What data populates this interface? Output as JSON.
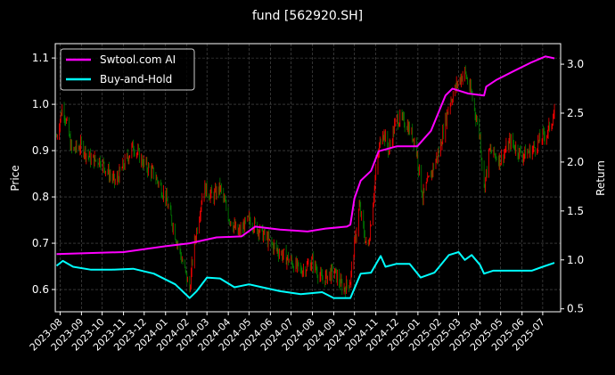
{
  "chart_data": {
    "type": "line",
    "title": "fund [562920.SH]",
    "ylabel_left": "Price",
    "ylabel_right": "Return",
    "xlim": [
      "2023-07-25",
      "2025-07-27"
    ],
    "ylim_left": [
      0.552,
      1.131
    ],
    "ylim_right": [
      0.47,
      3.21
    ],
    "yticks_left": [
      0.6,
      0.7,
      0.8,
      0.9,
      1.0,
      1.1
    ],
    "yticks_right": [
      0.5,
      1.0,
      1.5,
      2.0,
      2.5,
      3.0
    ],
    "xticks": [
      "2023-08",
      "2023-09",
      "2023-10",
      "2023-11",
      "2023-12",
      "2024-01",
      "2024-02",
      "2024-03",
      "2024-04",
      "2024-05",
      "2024-06",
      "2024-07",
      "2024-08",
      "2024-09",
      "2024-10",
      "2024-11",
      "2024-12",
      "2025-01",
      "2025-02",
      "2025-03",
      "2025-04",
      "2025-05",
      "2025-06",
      "2025-07"
    ],
    "grid": true,
    "legend_placement": "top-left",
    "colors": {
      "up": "#ff0000",
      "down": "#008000",
      "strategy": "#ff00ff",
      "buy_hold": "#00ffff",
      "background": "#000000"
    },
    "price": {
      "axis": "left",
      "style": "candlestick",
      "x": [
        "2023-07-27",
        "2023-08-05",
        "2023-08-18",
        "2023-09-01",
        "2023-09-15",
        "2023-09-28",
        "2023-10-20",
        "2023-11-05",
        "2023-11-15",
        "2023-12-01",
        "2023-12-15",
        "2024-01-01",
        "2024-01-15",
        "2024-02-05",
        "2024-02-10",
        "2024-02-25",
        "2024-03-10",
        "2024-03-20",
        "2024-04-01",
        "2024-04-15",
        "2024-05-01",
        "2024-05-15",
        "2024-06-01",
        "2024-06-15",
        "2024-07-01",
        "2024-07-15",
        "2024-08-01",
        "2024-08-15",
        "2024-09-01",
        "2024-09-15",
        "2024-09-25",
        "2024-10-08",
        "2024-10-20",
        "2024-11-01",
        "2024-11-10",
        "2024-11-20",
        "2024-12-01",
        "2024-12-15",
        "2024-12-28",
        "2025-01-08",
        "2025-01-20",
        "2025-02-01",
        "2025-02-15",
        "2025-03-01",
        "2025-03-10",
        "2025-03-20",
        "2025-04-01",
        "2025-04-07",
        "2025-04-15",
        "2025-05-01",
        "2025-05-15",
        "2025-06-01",
        "2025-06-15",
        "2025-07-01",
        "2025-07-08",
        "2025-07-18"
      ],
      "values": [
        0.93,
        1.0,
        0.9,
        0.91,
        0.88,
        0.88,
        0.83,
        0.88,
        0.91,
        0.87,
        0.85,
        0.8,
        0.72,
        0.6,
        0.68,
        0.82,
        0.8,
        0.82,
        0.76,
        0.72,
        0.75,
        0.73,
        0.7,
        0.68,
        0.66,
        0.64,
        0.66,
        0.62,
        0.64,
        0.6,
        0.62,
        0.78,
        0.68,
        0.85,
        0.95,
        0.9,
        0.97,
        0.96,
        0.92,
        0.8,
        0.85,
        0.9,
        1.0,
        1.05,
        1.07,
        1.02,
        0.93,
        0.82,
        0.9,
        0.88,
        0.92,
        0.89,
        0.9,
        0.93,
        0.94,
        0.98
      ]
    },
    "series": [
      {
        "name": "Swtool.com AI",
        "axis": "right",
        "x": [
          "2023-07-27",
          "2023-11-01",
          "2024-01-01",
          "2024-02-05",
          "2024-03-15",
          "2024-04-20",
          "2024-05-10",
          "2024-06-15",
          "2024-07-25",
          "2024-08-20",
          "2024-09-20",
          "2024-09-25",
          "2024-10-01",
          "2024-10-10",
          "2024-10-25",
          "2024-11-05",
          "2024-12-01",
          "2024-12-31",
          "2025-01-20",
          "2025-02-10",
          "2025-02-20",
          "2025-03-15",
          "2025-04-07",
          "2025-04-10",
          "2025-04-25",
          "2025-05-20",
          "2025-06-15",
          "2025-07-05",
          "2025-07-18"
        ],
        "values": [
          1.06,
          1.08,
          1.14,
          1.17,
          1.23,
          1.24,
          1.34,
          1.31,
          1.29,
          1.32,
          1.34,
          1.36,
          1.63,
          1.81,
          1.91,
          2.11,
          2.16,
          2.16,
          2.32,
          2.68,
          2.75,
          2.7,
          2.68,
          2.77,
          2.84,
          2.93,
          3.02,
          3.08,
          3.06
        ]
      },
      {
        "name": "Buy-and-Hold",
        "axis": "right",
        "x": [
          "2023-07-27",
          "2023-08-05",
          "2023-08-20",
          "2023-09-15",
          "2023-10-15",
          "2023-11-15",
          "2023-12-15",
          "2024-01-15",
          "2024-02-05",
          "2024-02-15",
          "2024-03-01",
          "2024-03-20",
          "2024-04-10",
          "2024-05-01",
          "2024-05-20",
          "2024-06-15",
          "2024-07-15",
          "2024-08-15",
          "2024-09-01",
          "2024-09-25",
          "2024-10-10",
          "2024-10-25",
          "2024-11-08",
          "2024-11-15",
          "2024-12-01",
          "2024-12-20",
          "2025-01-05",
          "2025-01-25",
          "2025-02-15",
          "2025-03-01",
          "2025-03-10",
          "2025-03-20",
          "2025-04-01",
          "2025-04-07",
          "2025-04-20",
          "2025-05-15",
          "2025-06-15",
          "2025-07-01",
          "2025-07-18"
        ],
        "values": [
          0.94,
          0.99,
          0.93,
          0.9,
          0.9,
          0.91,
          0.86,
          0.75,
          0.61,
          0.68,
          0.82,
          0.81,
          0.72,
          0.75,
          0.72,
          0.68,
          0.65,
          0.67,
          0.61,
          0.61,
          0.86,
          0.87,
          1.04,
          0.93,
          0.96,
          0.96,
          0.82,
          0.87,
          1.05,
          1.08,
          1.0,
          1.05,
          0.95,
          0.86,
          0.89,
          0.89,
          0.89,
          0.93,
          0.97
        ]
      }
    ]
  }
}
